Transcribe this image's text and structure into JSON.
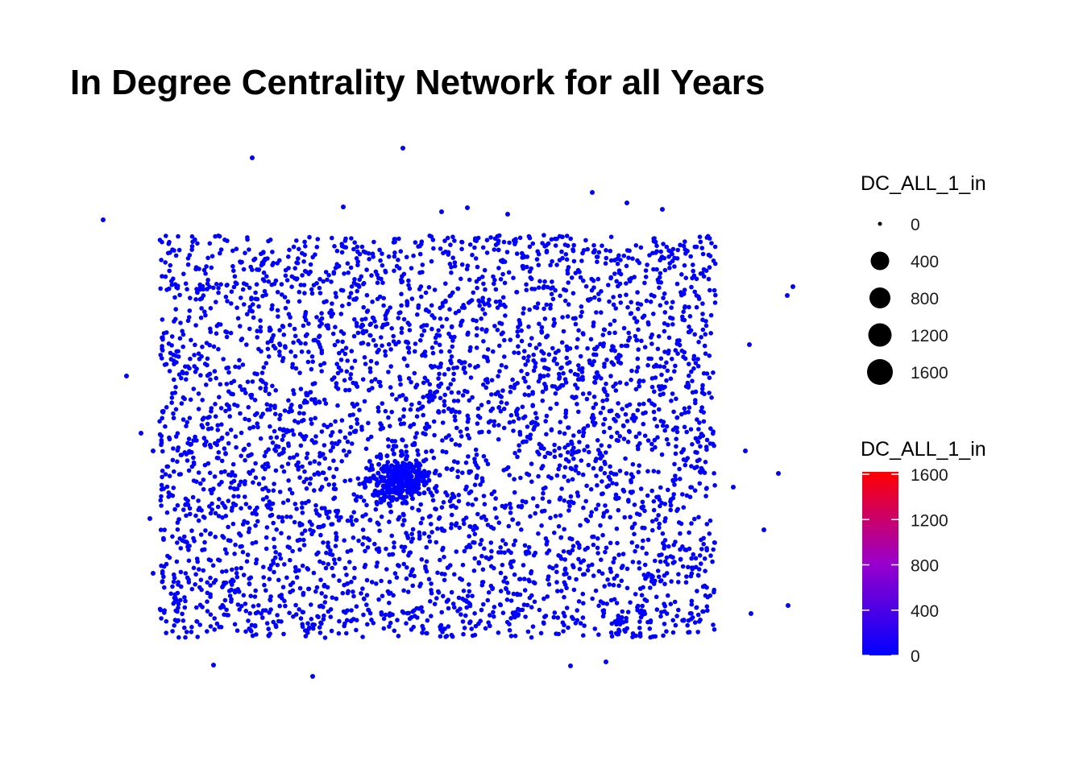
{
  "chart_data": {
    "type": "scatter",
    "title": "In Degree Centrality Network for all Years",
    "xlabel": "",
    "ylabel": "",
    "grid": false,
    "axes_visible": false,
    "point_color": "#0000FF",
    "point_count_approx": 4000,
    "clusters": [
      {
        "label": "central hub",
        "relative_position": "center-left",
        "density": "very high"
      }
    ],
    "legend_position": "right",
    "size_legend": {
      "title": "DC_ALL_1_in",
      "values": [
        0,
        400,
        800,
        1200,
        1600
      ],
      "labels": [
        "0",
        "400",
        "800",
        "1200",
        "1600"
      ]
    },
    "color_legend": {
      "title": "DC_ALL_1_in",
      "range": [
        0,
        1600
      ],
      "tick_values": [
        0,
        400,
        800,
        1200,
        1600
      ],
      "tick_labels": [
        "0",
        "400",
        "800",
        "1200",
        "1600"
      ],
      "low_color": "#0000FF",
      "high_color": "#FF0000"
    }
  }
}
